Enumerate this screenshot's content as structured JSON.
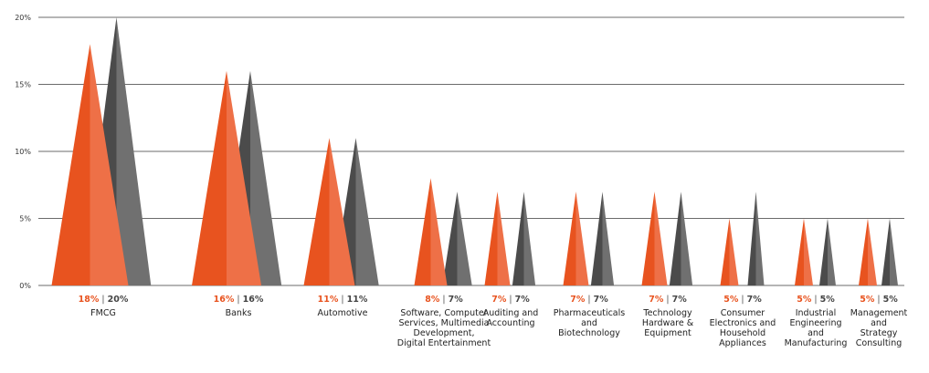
{
  "chart_data": {
    "type": "bar",
    "title": "",
    "xlabel": "",
    "ylabel": "",
    "ylim": [
      0,
      20
    ],
    "y_ticks": [
      "0%",
      "5%",
      "10%",
      "15%",
      "20%"
    ],
    "grid": true,
    "categories": [
      "FMCG",
      "Banks",
      "Automotive",
      "Software, Computer Services, Multimedia Development, Digital Entertainment",
      "Auditing and Accounting",
      "Pharmaceuticals and Biotechnology",
      "Technology Hardware & Equipment",
      "Consumer Electronics and Household Appliances",
      "Industrial Engineering and Manufacturing",
      "Management and Strategy Consulting"
    ],
    "category_label_lines": [
      [
        "FMCG"
      ],
      [
        "Banks"
      ],
      [
        "Automotive"
      ],
      [
        "Software, Computer",
        "Services, Multimedia",
        "Development,",
        "Digital Entertainment"
      ],
      [
        "Auditing and",
        "Accounting"
      ],
      [
        "Pharmaceuticals",
        "and",
        "Biotechnology"
      ],
      [
        "Technology",
        "Hardware &",
        "Equipment"
      ],
      [
        "Consumer",
        "Electronics and",
        "Household",
        "Appliances"
      ],
      [
        "Industrial",
        "Engineering",
        "and",
        "Manufacturing"
      ],
      [
        "Management",
        "and",
        "Strategy",
        "Consulting"
      ]
    ],
    "series": [
      {
        "values": [
          18,
          16,
          11,
          8,
          7,
          7,
          7,
          5,
          5,
          5
        ],
        "labels": [
          "18%",
          "16%",
          "11%",
          "8%",
          "7%",
          "7%",
          "7%",
          "5%",
          "5%",
          "5%"
        ]
      },
      {
        "values": [
          20,
          16,
          11,
          7,
          7,
          7,
          7,
          7,
          5,
          5
        ],
        "labels": [
          "20%",
          "16%",
          "11%",
          "7%",
          "7%",
          "7%",
          "7%",
          "7%",
          "5%",
          "5%"
        ]
      }
    ],
    "separator": "|",
    "colors": {
      "series1_dark": "#e8531f",
      "series1_light": "#ee7047",
      "series1_label": "#e8531f",
      "series2_dark": "#4b4b4b",
      "series2_light": "#707070",
      "series2_label": "#444444",
      "separator": "#555555",
      "grid": "#3a3a3a"
    }
  }
}
